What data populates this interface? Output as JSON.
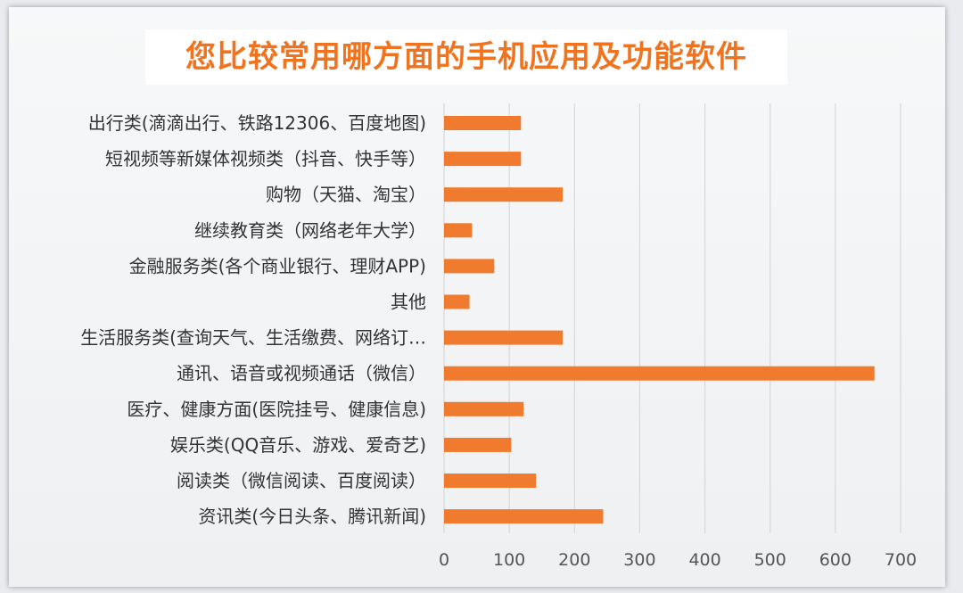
{
  "title": "您比较常用哪方面的手机应用及功能软件",
  "colors": {
    "bar": "#f07a2d",
    "grid": "#d6d8da",
    "title": "#f07420"
  },
  "chart_data": {
    "type": "bar",
    "orientation": "horizontal",
    "title": "您比较常用哪方面的手机应用及功能软件",
    "categories": [
      "出行类(滴滴出行、铁路12306、百度地图)",
      "短视频等新媒体视频类（抖音、快手等）",
      "购物（天猫、淘宝）",
      "继续教育类（网络老年大学）",
      "金融服务类(各个商业银行、理财APP)",
      "其他",
      "生活服务类(查询天气、生活缴费、网络订…",
      "通讯、语音或视频通话（微信）",
      "医疗、健康方面(医院挂号、健康信息)",
      "娱乐类(QQ音乐、游戏、爱奇艺)",
      "阅读类（微信阅读、百度阅读）",
      "资讯类(今日头条、腾讯新闻)"
    ],
    "values": [
      118,
      118,
      182,
      43,
      77,
      39,
      182,
      660,
      122,
      103,
      141,
      244
    ],
    "xlim": [
      0,
      700
    ],
    "xticks": [
      "0",
      "100",
      "200",
      "300",
      "400",
      "500",
      "600",
      "700"
    ],
    "grid": true,
    "legend": "none"
  }
}
